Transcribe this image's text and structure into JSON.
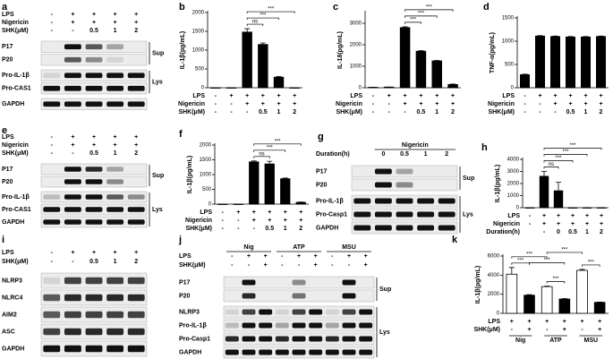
{
  "blots": [
    {
      "panel": "a",
      "conditions": [
        {
          "name": "LPS",
          "values": [
            "-",
            "+",
            "+",
            "+",
            "+"
          ]
        },
        {
          "name": "Nigericin",
          "values": [
            "-",
            "+",
            "+",
            "+",
            "+"
          ]
        },
        {
          "name": "SHK(μM)",
          "values": [
            "-",
            "-",
            "0.5",
            "1",
            "2"
          ]
        }
      ],
      "sections": [
        {
          "name": "Sup",
          "rows": [
            "P17",
            "P20"
          ]
        },
        {
          "name": "Lys",
          "rows": [
            "Pro-IL-1β",
            "Pro-CAS1"
          ]
        },
        {
          "rows": [
            "GAPDH"
          ]
        }
      ]
    },
    {
      "panel": "e",
      "conditions": [
        {
          "name": "LPS",
          "values": [
            "-",
            "+",
            "+",
            "+",
            "+"
          ]
        },
        {
          "name": "Nigericin",
          "values": [
            "-",
            "+",
            "+",
            "+",
            "+"
          ]
        },
        {
          "name": "SHK(μM)",
          "values": [
            "-",
            "-",
            "0.5",
            "1",
            "2"
          ]
        }
      ],
      "sections": [
        {
          "name": "Sup",
          "rows": [
            "P17",
            "P20"
          ]
        },
        {
          "name": "Lys",
          "rows": [
            "Pro-IL-1β",
            "Pro-CAS1",
            "GAPDH"
          ]
        }
      ]
    },
    {
      "panel": "g",
      "group_label": "Nigericin",
      "conditions": [
        {
          "name": "Duration(h)",
          "values": [
            null,
            "0",
            "0.5",
            "1",
            "2"
          ]
        }
      ],
      "sections": [
        {
          "name": "Sup",
          "rows": [
            "P17",
            "P20"
          ]
        },
        {
          "name": "Lys",
          "rows": [
            "Pro-IL-1β",
            "Pro-Casp1",
            "GAPDH"
          ]
        }
      ]
    },
    {
      "panel": "i",
      "conditions": [
        {
          "name": "LPS",
          "values": [
            "-",
            "+",
            "+",
            "+",
            "+"
          ]
        },
        {
          "name": "SHK(μM)",
          "values": [
            "-",
            "-",
            "0.5",
            "1",
            "2"
          ]
        }
      ],
      "sections": [
        {
          "rows": [
            "NLRP3",
            "NLRC4",
            "AIM2",
            "ASC",
            "GAPDH"
          ]
        }
      ]
    },
    {
      "panel": "j",
      "groups": [
        "Nig",
        "ATP",
        "MSU"
      ],
      "conditions": [
        {
          "name": "LPS",
          "values": [
            "-",
            "+",
            "+",
            "-",
            "+",
            "+",
            "-",
            "+",
            "+"
          ]
        },
        {
          "name": "SHK(μM)",
          "values": [
            "-",
            "-",
            "+",
            "-",
            "-",
            "+",
            "-",
            "-",
            "+"
          ]
        }
      ],
      "sections": [
        {
          "name": "Sup",
          "rows": [
            "P17",
            "P20"
          ]
        },
        {
          "name": "Lys",
          "rows": [
            "NLRP3",
            "Pro-IL-1β",
            "Pro-Casp1",
            "GAPDH"
          ]
        }
      ]
    }
  ],
  "chart_data": [
    {
      "type": "bar",
      "panel": "b",
      "y_label": "IL-1β(pg/mL)",
      "color": "#000000",
      "values": [
        0,
        0,
        1480,
        1150,
        280,
        0
      ],
      "errors": [
        0,
        0,
        90,
        40,
        20,
        0
      ],
      "ylim": [
        0,
        2000
      ],
      "yticks": [
        0,
        500,
        1000,
        1500,
        2000
      ],
      "conditions": [
        {
          "name": "LPS",
          "values": [
            "-",
            "+",
            "+",
            "+",
            "+",
            "+"
          ]
        },
        {
          "name": "Nigericin",
          "values": [
            "-",
            "-",
            "+",
            "+",
            "+",
            "+"
          ]
        },
        {
          "name": "SHK(μM)",
          "values": [
            "-",
            "-",
            "-",
            "0.5",
            "1",
            "2"
          ]
        }
      ],
      "significance": [
        "ns",
        "***",
        "***"
      ]
    },
    {
      "type": "bar",
      "panel": "c",
      "y_label": "IL-18(pg/mL)",
      "color": "#000000",
      "values": [
        20,
        30,
        2800,
        1700,
        1250,
        150
      ],
      "errors": [
        0,
        0,
        40,
        30,
        20,
        20
      ],
      "ylim": [
        0,
        3500
      ],
      "yticks": [
        0,
        1000,
        2000,
        3000
      ],
      "conditions": [
        {
          "name": "LPS",
          "values": [
            "-",
            "+",
            "+",
            "+",
            "+",
            "+"
          ]
        },
        {
          "name": "Nigericin",
          "values": [
            "-",
            "-",
            "+",
            "+",
            "+",
            "+"
          ]
        },
        {
          "name": "SHK(μM)",
          "values": [
            "-",
            "-",
            "-",
            "0.5",
            "1",
            "2"
          ]
        }
      ],
      "significance": [
        "***",
        "***",
        "***"
      ]
    },
    {
      "type": "bar",
      "panel": "d",
      "y_label": "TNF-α(pg/mL)",
      "color": "#000000",
      "values": [
        280,
        1110,
        1100,
        1090,
        1090,
        1100
      ],
      "errors": [
        10,
        10,
        10,
        10,
        10,
        10
      ],
      "ylim": [
        0,
        1500
      ],
      "yticks": [
        0,
        500,
        1000,
        1500
      ],
      "conditions": [
        {
          "name": "LPS",
          "values": [
            "-",
            "+",
            "+",
            "+",
            "+",
            "+"
          ]
        },
        {
          "name": "Nigericin",
          "values": [
            "-",
            "-",
            "+",
            "+",
            "+",
            "+"
          ]
        },
        {
          "name": "SHK(μM)",
          "values": [
            "-",
            "-",
            "-",
            "0.5",
            "1",
            "2"
          ]
        }
      ],
      "significance": []
    },
    {
      "type": "bar",
      "panel": "f",
      "y_label": "IL-1β(pg/mL)",
      "color": "#000000",
      "values": [
        0,
        0,
        1430,
        1360,
        860,
        60
      ],
      "errors": [
        0,
        0,
        30,
        90,
        20,
        10
      ],
      "ylim": [
        0,
        2000
      ],
      "yticks": [
        0,
        500,
        1000,
        1500,
        2000
      ],
      "conditions": [
        {
          "name": "LPS",
          "values": [
            "-",
            "+",
            "+",
            "+",
            "+",
            "+"
          ]
        },
        {
          "name": "Nigericin",
          "values": [
            "-",
            "-",
            "+",
            "+",
            "+",
            "+"
          ]
        },
        {
          "name": "SHK(μM)",
          "values": [
            "-",
            "-",
            "-",
            "0.5",
            "1",
            "2"
          ]
        }
      ],
      "significance": [
        "ns",
        "***",
        "***"
      ]
    },
    {
      "type": "bar",
      "panel": "h",
      "y_label": "IL-1β(pg/mL)",
      "color": "#000000",
      "values": [
        0,
        2600,
        1400,
        0,
        0,
        0
      ],
      "errors": [
        0,
        400,
        700,
        0,
        0,
        0
      ],
      "ylim": [
        0,
        4000
      ],
      "yticks": [
        0,
        1000,
        2000,
        3000,
        4000
      ],
      "conditions": [
        {
          "name": "LPS",
          "values": [
            "-",
            "+",
            "+",
            "+",
            "+",
            "+"
          ]
        },
        {
          "name": "Nigericin",
          "values": [
            "-",
            "+",
            "+",
            "+",
            "+",
            "+"
          ]
        },
        {
          "name": "Duration(h)",
          "values": [
            null,
            "-",
            "0",
            "0.5",
            "1",
            "2"
          ]
        }
      ],
      "significance": [
        "ns",
        "***",
        "***",
        "***"
      ]
    },
    {
      "type": "bar",
      "panel": "k",
      "y_label": "IL-1β(pg/mL)",
      "color": "#000000",
      "bar_colors": [
        "#ffffff",
        "#000000",
        "#ffffff",
        "#000000",
        "#ffffff",
        "#000000"
      ],
      "values": [
        4100,
        1900,
        2800,
        1500,
        4500,
        1150
      ],
      "errors": [
        700,
        50,
        60,
        50,
        100,
        30
      ],
      "ylim": [
        0,
        6000
      ],
      "yticks": [
        0,
        2000,
        4000,
        6000
      ],
      "conditions": [
        {
          "name": "LPS",
          "values": [
            "+",
            "+",
            "+",
            "+",
            "+",
            "+"
          ]
        },
        {
          "name": "SHK(μM)",
          "values": [
            "-",
            "+",
            "-",
            "+",
            "-",
            "+"
          ]
        }
      ],
      "groups": [
        "Nig",
        "ATP",
        "MSU"
      ],
      "significance": [
        "***",
        "***",
        "***",
        "***",
        "***",
        "***"
      ]
    }
  ]
}
